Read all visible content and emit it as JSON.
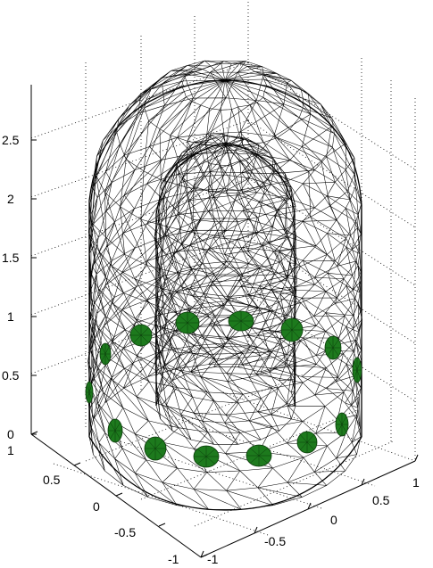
{
  "figure": {
    "z_axis_ticks": [
      "0",
      "0.5",
      "1",
      "1.5",
      "2",
      "2.5"
    ],
    "y_axis_ticks": [
      "1",
      "0.5",
      "0",
      "-0.5",
      "-1"
    ],
    "x_axis_ticks": [
      "-1",
      "-0.5",
      "0",
      "0.5",
      "1"
    ],
    "colors": {
      "mesh": "#000000",
      "electrode": "#1d7a1d",
      "background": "#ffffff"
    },
    "electrode_count": 14
  }
}
